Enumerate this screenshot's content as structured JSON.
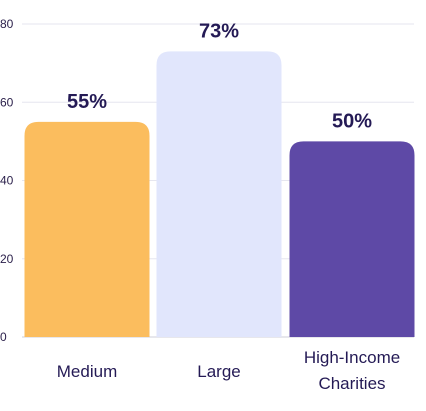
{
  "chart_data": {
    "type": "bar",
    "categories": [
      [
        "Medium"
      ],
      [
        "Large"
      ],
      [
        "High-Income",
        "Charities"
      ]
    ],
    "values": [
      55,
      73,
      50
    ],
    "data_labels": [
      "55%",
      "73%",
      "50%"
    ],
    "colors": [
      "#fbbd5e",
      "#e1e6fc",
      "#5e49a6"
    ],
    "ylim": [
      0,
      80
    ],
    "yticks": [
      0,
      20,
      40,
      60,
      80
    ],
    "grid": true,
    "title": "",
    "xlabel": "",
    "ylabel": ""
  }
}
